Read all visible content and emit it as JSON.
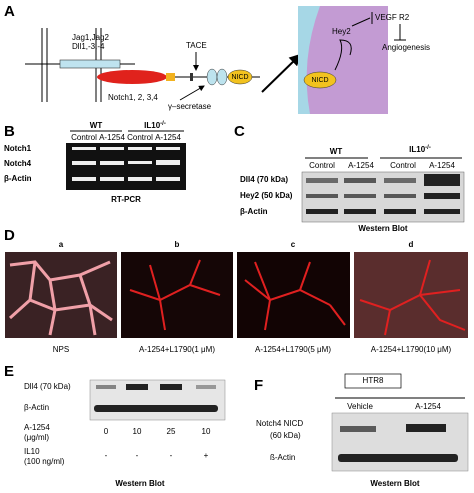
{
  "panel_a": {
    "label": "A",
    "ligand_1": "Jag1,Jag2",
    "ligand_2": "Dll1,-3,-4",
    "tace": "TACE",
    "receptor": "Notch1, 2, 3,4",
    "nicd": "NICD",
    "secretase": "γ–secretase",
    "hey2": "Hey2",
    "vegfr2": "VEGF R2",
    "angiogenesis": "Angiogenesis",
    "cell_nicd": "NICD"
  },
  "panel_b": {
    "label": "B",
    "wt": "WT",
    "ko": {
      "base": "IL10",
      "sup": "-/-"
    },
    "lanes": [
      "Control",
      "A-1254",
      "Control",
      "A-1254"
    ],
    "rows": [
      "Notch1",
      "Notch4",
      "β-Actin"
    ],
    "caption": "RT-PCR"
  },
  "panel_c": {
    "label": "C",
    "wt": "WT",
    "ko": {
      "base": "IL10",
      "sup": "-/-"
    },
    "lanes": [
      "Control",
      "A-1254",
      "Control",
      "A-1254"
    ],
    "rows": [
      "Dll4 (70 kDa)",
      "Hey2 (50 kDa)",
      "β-Actin"
    ],
    "caption": "Western Blot"
  },
  "panel_d": {
    "label": "D",
    "letters": [
      "a",
      "b",
      "c",
      "d"
    ],
    "captions": [
      "NPS",
      "A-1254+L1790(1 μM)",
      "A-1254+L1790(5 μM)",
      "A-1254+L1790(10 μM)"
    ]
  },
  "panel_e": {
    "label": "E",
    "rows": [
      "Dll4 (70 kDa)",
      "β-Actin"
    ],
    "dose_label": [
      "A-1254",
      "(μg/ml)"
    ],
    "doses": [
      "0",
      "10",
      "25",
      "10"
    ],
    "il10_label": [
      "IL10",
      "(100 ng/ml)"
    ],
    "il10": [
      "-",
      "-",
      "-",
      "+"
    ],
    "caption": "Western Blot"
  },
  "panel_f": {
    "label": "F",
    "cell_line": "HTR8",
    "lanes": [
      "Vehicle",
      "A-1254"
    ],
    "row_1": [
      "Notch4 NICD",
      "(60 kDa)"
    ],
    "row_2": "ß-Actin",
    "caption": "Western Blot"
  }
}
